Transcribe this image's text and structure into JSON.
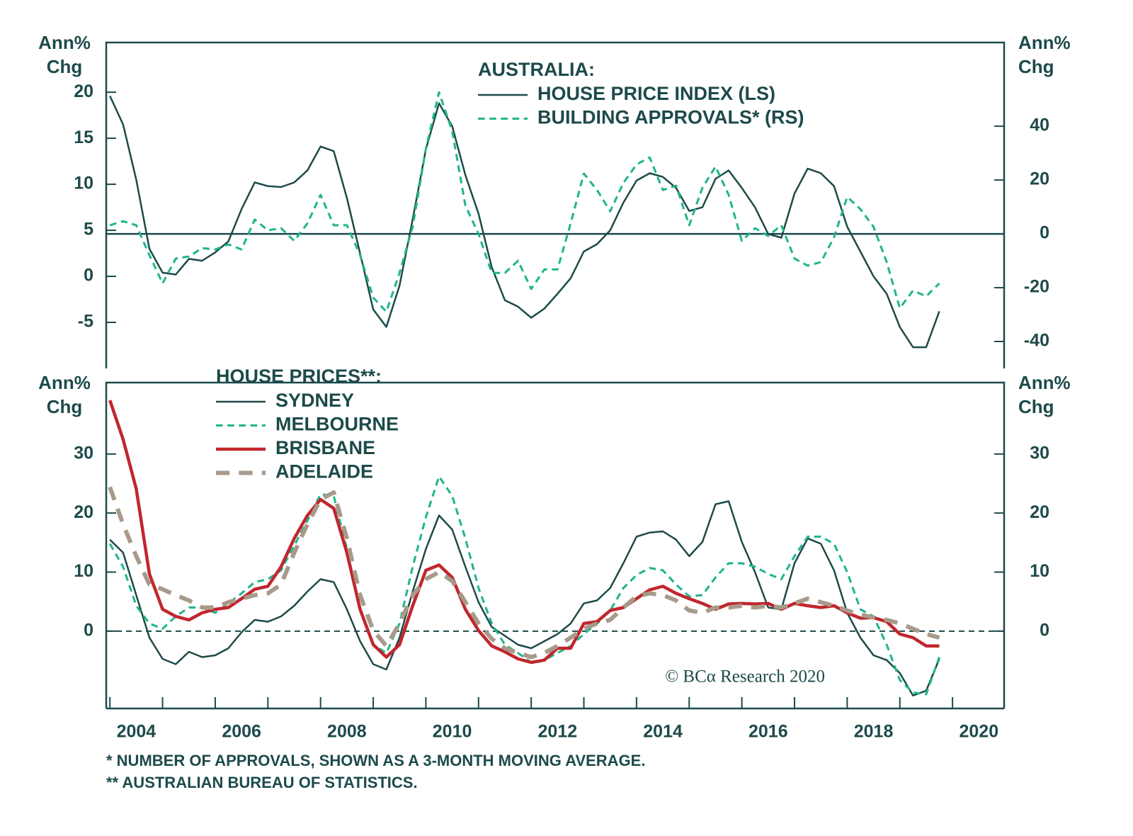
{
  "chart_data": [
    {
      "type": "line",
      "title": "AUSTRALIA:",
      "ylabel_lines": [
        "Ann%",
        "Chg"
      ],
      "y2label_lines": [
        "Ann%",
        "Chg"
      ],
      "xlim": [
        2003.93,
        2020.98
      ],
      "ylim": [
        -10,
        25.4
      ],
      "yticks": [
        -5,
        0,
        5,
        10,
        15,
        20
      ],
      "y2lim": [
        -50,
        71.1
      ],
      "y2ticks": [
        -40,
        -20,
        0,
        20,
        40
      ],
      "hline_y2": 0,
      "x": [
        2004,
        2004.25,
        2004.5,
        2004.75,
        2005,
        2005.25,
        2005.5,
        2005.75,
        2006,
        2006.25,
        2006.5,
        2006.75,
        2007,
        2007.25,
        2007.5,
        2007.75,
        2008,
        2008.25,
        2008.5,
        2008.75,
        2009,
        2009.25,
        2009.5,
        2009.75,
        2010,
        2010.25,
        2010.5,
        2010.75,
        2011,
        2011.25,
        2011.5,
        2011.75,
        2012,
        2012.25,
        2012.5,
        2012.75,
        2013,
        2013.25,
        2013.5,
        2013.75,
        2014,
        2014.25,
        2014.5,
        2014.75,
        2015,
        2015.25,
        2015.5,
        2015.75,
        2016,
        2016.25,
        2016.5,
        2016.75,
        2017,
        2017.25,
        2017.5,
        2017.75,
        2018,
        2018.25,
        2018.5,
        2018.75,
        2019,
        2019.25,
        2019.5,
        2019.75
      ],
      "series": [
        {
          "name": "HOUSE PRICE INDEX (LS)",
          "color": "#1d4a4a",
          "line_style": "solid",
          "line_width": 2.5,
          "values": [
            19.6,
            16.5,
            10.5,
            3.0,
            0.4,
            0.2,
            1.9,
            1.7,
            2.6,
            3.8,
            7.3,
            10.2,
            9.8,
            9.7,
            10.2,
            11.5,
            14.1,
            13.6,
            8.5,
            2.5,
            -3.6,
            -5.5,
            -1.0,
            6.2,
            13.8,
            18.8,
            16.3,
            11.0,
            6.8,
            1.0,
            -2.6,
            -3.3,
            -4.5,
            -3.5,
            -1.9,
            -0.2,
            2.7,
            3.5,
            5.0,
            8.0,
            10.4,
            11.2,
            10.8,
            9.6,
            7.1,
            7.5,
            10.6,
            11.5,
            9.6,
            7.5,
            4.6,
            4.2,
            9.0,
            11.7,
            11.2,
            9.8,
            5.4,
            2.7,
            0.0,
            -1.9,
            -5.5,
            -7.7,
            -7.7,
            -3.8
          ]
        },
        {
          "name": "BUILDING APPROVALS* (RS)",
          "color": "#1fb58a",
          "line_style": "dashed",
          "line_width": 3,
          "axis": "y2",
          "values": [
            3.2,
            4.7,
            3.2,
            -7.9,
            -18.4,
            -9.2,
            -8.4,
            -5.3,
            -5.8,
            -3.9,
            -5.8,
            5.3,
            1.3,
            2.1,
            -2.6,
            3.9,
            14.5,
            3.2,
            3.2,
            -7.9,
            -23.7,
            -28.9,
            -14.5,
            2.6,
            31.6,
            52.6,
            38.2,
            10.5,
            0,
            -14.5,
            -14.5,
            -10,
            -20.5,
            -13.2,
            -13.2,
            3.9,
            22.4,
            16.3,
            8.4,
            18.9,
            25.8,
            28.4,
            16.3,
            17.9,
            3.2,
            17.1,
            25,
            14.5,
            -2.6,
            2.1,
            -0.8,
            3.2,
            -9.2,
            -11.8,
            -10.5,
            -1.3,
            13.7,
            9.2,
            2.6,
            -10.5,
            -27.6,
            -21.1,
            -23.2,
            -18.4
          ]
        }
      ]
    },
    {
      "type": "line",
      "title": "HOUSE PRICES**:",
      "ylabel_lines": [
        "Ann%",
        "Chg"
      ],
      "y2label_lines": [
        "Ann%",
        "Chg"
      ],
      "xlim": [
        2003.93,
        2020.98
      ],
      "xticks": [
        2004,
        2006,
        2008,
        2010,
        2012,
        2014,
        2016,
        2018,
        2020
      ],
      "xminor_ticks": [
        2005,
        2007,
        2009,
        2011,
        2013,
        2015,
        2017,
        2019
      ],
      "ylim": [
        -13.1,
        42.1
      ],
      "yticks": [
        0,
        10,
        20,
        30
      ],
      "y2lim": [
        -13.1,
        42.1
      ],
      "y2ticks": [
        0,
        10,
        20,
        30
      ],
      "hline": 0,
      "x": [
        2004,
        2004.25,
        2004.5,
        2004.75,
        2005,
        2005.25,
        2005.5,
        2005.75,
        2006,
        2006.25,
        2006.5,
        2006.75,
        2007,
        2007.25,
        2007.5,
        2007.75,
        2008,
        2008.25,
        2008.5,
        2008.75,
        2009,
        2009.25,
        2009.5,
        2009.75,
        2010,
        2010.25,
        2010.5,
        2010.75,
        2011,
        2011.25,
        2011.5,
        2011.75,
        2012,
        2012.25,
        2012.5,
        2012.75,
        2013,
        2013.25,
        2013.5,
        2013.75,
        2014,
        2014.25,
        2014.5,
        2014.75,
        2015,
        2015.25,
        2015.5,
        2015.75,
        2016,
        2016.25,
        2016.5,
        2016.75,
        2017,
        2017.25,
        2017.5,
        2017.75,
        2018,
        2018.25,
        2018.5,
        2018.75,
        2019,
        2019.25,
        2019.5,
        2019.75
      ],
      "series": [
        {
          "name": "SYDNEY",
          "color": "#1d4a4a",
          "line_style": "solid",
          "line_width": 2.5,
          "values": [
            15.5,
            13.3,
            6.1,
            -1.1,
            -4.7,
            -5.6,
            -3.5,
            -4.4,
            -4.1,
            -2.9,
            -0.2,
            1.9,
            1.6,
            2.5,
            4.3,
            6.7,
            8.8,
            8.3,
            3.7,
            -1.7,
            -5.6,
            -6.5,
            -1.1,
            6.7,
            13.9,
            19.6,
            17.2,
            10.9,
            4.9,
            0.7,
            -0.8,
            -2.3,
            -2.9,
            -1.7,
            -0.5,
            1.3,
            4.7,
            5.2,
            7.3,
            11.5,
            16.0,
            16.7,
            16.9,
            15.5,
            12.7,
            15.1,
            21.5,
            22.0,
            15.1,
            10.0,
            4.0,
            3.7,
            11.5,
            15.7,
            14.8,
            10.3,
            3.1,
            -1.1,
            -4.1,
            -4.9,
            -7.1,
            -10.9,
            -10.1,
            -4.7
          ]
        },
        {
          "name": "MELBOURNE",
          "color": "#1fb58a",
          "line_style": "dashed",
          "line_width": 3,
          "values": [
            14.8,
            10.9,
            4.3,
            1.3,
            0.4,
            2.5,
            4.0,
            4.0,
            3.1,
            4.7,
            6.4,
            8.3,
            8.8,
            10.3,
            14.5,
            18.7,
            23.2,
            22.9,
            13.9,
            3.7,
            -2.3,
            -3.7,
            1.3,
            10.9,
            19.3,
            26.2,
            22.9,
            15.7,
            7.3,
            1.3,
            -2.3,
            -3.7,
            -5.3,
            -4.9,
            -3.7,
            -2.5,
            -0.5,
            1.3,
            3.5,
            7.3,
            9.5,
            10.7,
            10.3,
            7.9,
            5.9,
            6.1,
            9.1,
            11.5,
            11.5,
            10.9,
            9.7,
            8.8,
            12.7,
            16.0,
            16.0,
            14.8,
            10.0,
            3.7,
            2.5,
            -2.3,
            -8.3,
            -10.4,
            -10.7,
            -4.4
          ]
        },
        {
          "name": "BRISBANE",
          "color": "#c0272d",
          "line_style": "solid",
          "line_width": 4.5,
          "values": [
            39.1,
            32.5,
            24.1,
            9.7,
            3.7,
            2.5,
            1.9,
            3.1,
            3.7,
            4.0,
            5.5,
            7.1,
            7.6,
            10.9,
            15.7,
            19.6,
            22.3,
            20.8,
            13.3,
            3.7,
            -2.3,
            -4.4,
            -2.3,
            4.3,
            10.3,
            11.2,
            9.1,
            3.7,
            0.1,
            -2.5,
            -3.5,
            -4.7,
            -5.3,
            -4.9,
            -2.9,
            -2.9,
            1.3,
            1.6,
            3.5,
            4.0,
            5.5,
            7.0,
            7.6,
            6.4,
            5.5,
            4.7,
            3.7,
            4.6,
            4.7,
            4.6,
            4.7,
            3.7,
            4.7,
            4.3,
            4.0,
            4.3,
            3.1,
            2.2,
            2.3,
            1.6,
            -0.5,
            -1.1,
            -2.5,
            -2.5
          ]
        },
        {
          "name": "ADELAIDE",
          "color": "#a89a8a",
          "line_style": "dashed",
          "line_width": 6,
          "values": [
            24.4,
            18.1,
            12.7,
            7.9,
            7.1,
            6.1,
            5.2,
            4.0,
            4.0,
            4.9,
            5.5,
            6.1,
            6.4,
            7.9,
            13.3,
            18.1,
            22.3,
            23.5,
            15.7,
            6.1,
            0.1,
            -2.5,
            1.3,
            6.1,
            8.8,
            10.0,
            8.5,
            4.9,
            1.3,
            -1.3,
            -2.9,
            -3.7,
            -4.4,
            -3.7,
            -2.5,
            -1.1,
            0.4,
            1.3,
            1.9,
            4.0,
            5.9,
            6.4,
            6.1,
            5.2,
            3.5,
            3.1,
            4.0,
            4.0,
            4.3,
            4.0,
            4.3,
            4.0,
            4.7,
            5.5,
            4.9,
            4.3,
            3.5,
            2.8,
            2.3,
            1.9,
            1.3,
            0.4,
            -0.5,
            -1.1
          ]
        }
      ]
    }
  ],
  "credit": "© BCα Research 2020",
  "notes": [
    "* NUMBER OF APPROVALS, SHOWN AS A 3-MONTH MOVING AVERAGE.",
    "** AUSTRALIAN BUREAU OF STATISTICS."
  ]
}
